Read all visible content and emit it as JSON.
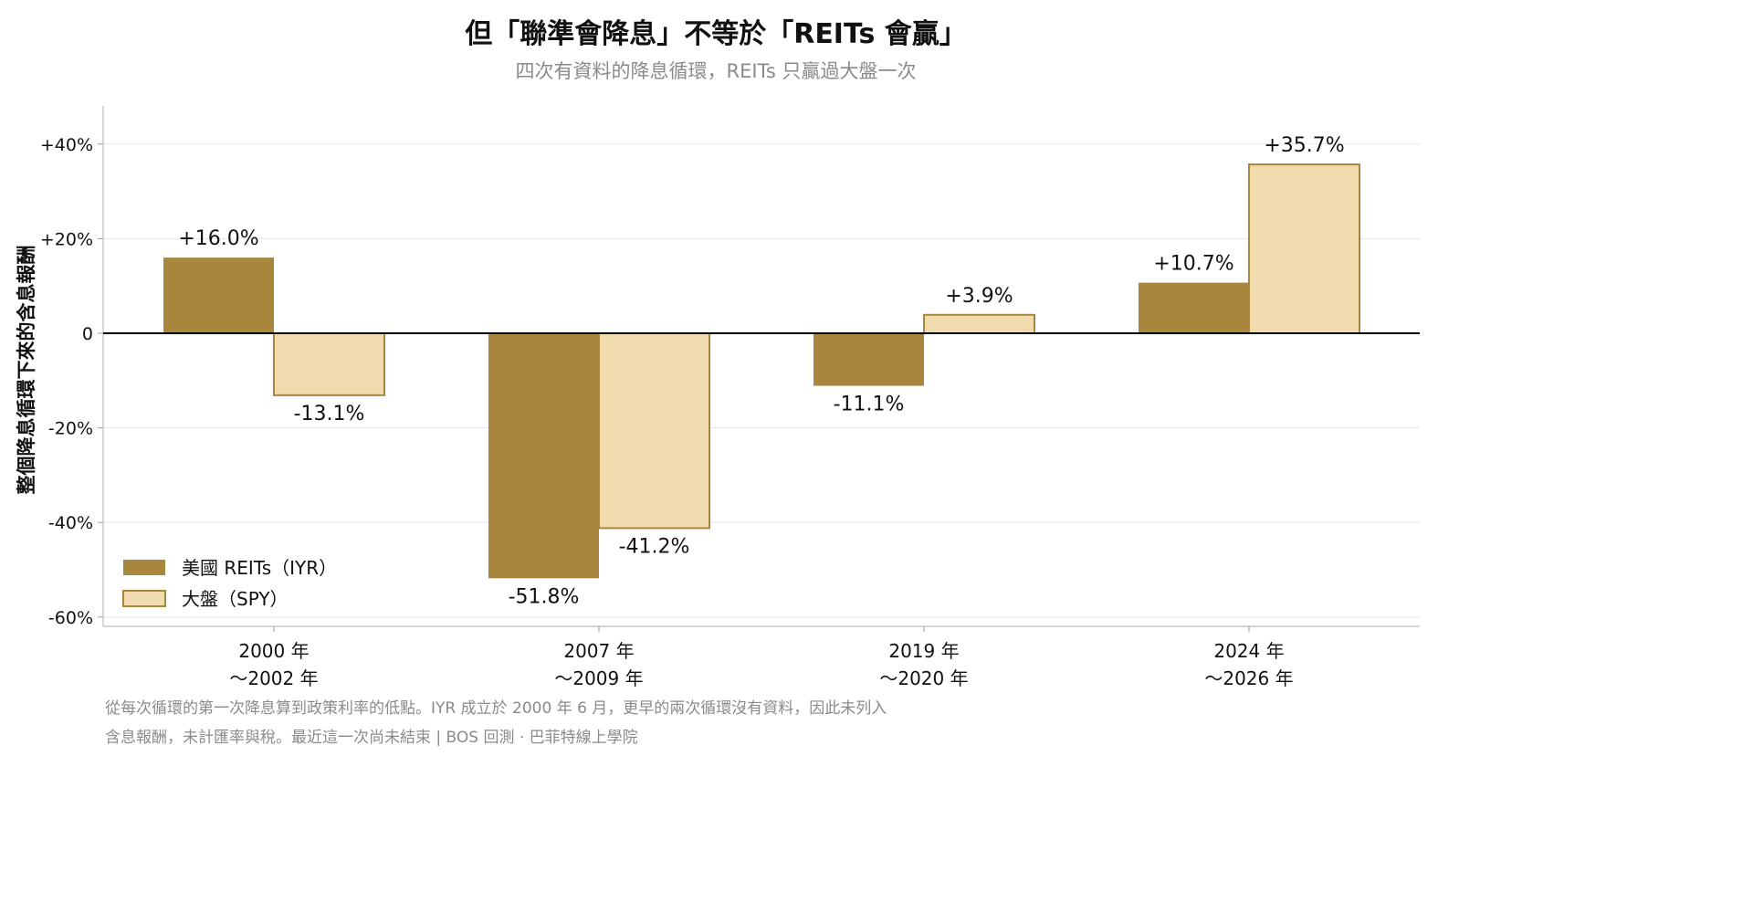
{
  "title": "但「聯準會降息」不等於「REITs 會贏」",
  "subtitle": "四次有資料的降息循環，REITs 只贏過大盤一次",
  "colors": {
    "reits": "#A8863D",
    "spy_fill": "#F0DBAE",
    "spy_stroke": "#A8863D",
    "zero_line": "#000000",
    "grid": "#e6e6e6"
  },
  "chart_data": {
    "type": "bar",
    "ylabel": "整個降息循環下來的含息報酬",
    "ylim": [
      -62,
      48
    ],
    "yticks": [
      {
        "value": 40,
        "label": "+40%"
      },
      {
        "value": 20,
        "label": "+20%"
      },
      {
        "value": 0,
        "label": "0"
      },
      {
        "value": -20,
        "label": "-20%"
      },
      {
        "value": -40,
        "label": "-40%"
      },
      {
        "value": -60,
        "label": "-60%"
      }
    ],
    "categories": [
      {
        "line1": "2000 年",
        "line2": "～2002 年"
      },
      {
        "line1": "2007 年",
        "line2": "～2009 年"
      },
      {
        "line1": "2019 年",
        "line2": "～2020 年"
      },
      {
        "line1": "2024 年",
        "line2": "～2026 年"
      }
    ],
    "series": [
      {
        "name": "美國 REITs（IYR）",
        "values": [
          16.0,
          -51.8,
          -11.1,
          10.7
        ],
        "labels": [
          "+16.0%",
          "-51.8%",
          "-11.1%",
          "+10.7%"
        ]
      },
      {
        "name": "大盤（SPY）",
        "values": [
          -13.1,
          -41.2,
          3.9,
          35.7
        ],
        "labels": [
          "-13.1%",
          "-41.2%",
          "+3.9%",
          "+35.7%"
        ]
      }
    ],
    "legend": "bottom-left",
    "grid": true
  },
  "footnote": {
    "line1": "從每次循環的第一次降息算到政策利率的低點。IYR 成立於 2000 年 6 月，更早的兩次循環沒有資料，因此未列入",
    "line2": "含息報酬，未計匯率與稅。最近這一次尚未結束 | BOS 回測 ·  巴菲特線上學院"
  }
}
